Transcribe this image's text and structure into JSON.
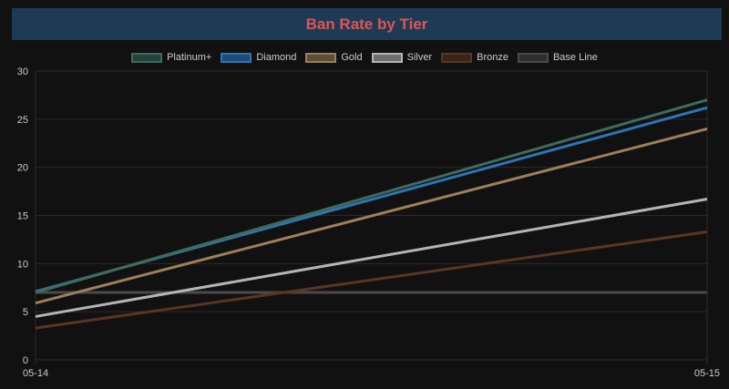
{
  "chart_data": {
    "type": "line",
    "title": "Ban Rate by Tier",
    "x": [
      "05-14",
      "05-15"
    ],
    "ylim": [
      0,
      30
    ],
    "yticks": [
      0,
      5,
      10,
      15,
      20,
      25,
      30
    ],
    "grid": true,
    "legend_position": "top",
    "series": [
      {
        "name": "Platinum+",
        "values": [
          7.0,
          27.0
        ],
        "color": "#3e6b5c",
        "fill": "#24433a"
      },
      {
        "name": "Diamond",
        "values": [
          7.1,
          26.2
        ],
        "color": "#2d74b5",
        "fill": "#1e4c78"
      },
      {
        "name": "Gold",
        "values": [
          5.9,
          24.0
        ],
        "color": "#9c8059",
        "fill": "#5e4d36"
      },
      {
        "name": "Silver",
        "values": [
          4.5,
          16.7
        ],
        "color": "#b5b5b5",
        "fill": "#6e6e6e"
      },
      {
        "name": "Bronze",
        "values": [
          3.3,
          13.3
        ],
        "color": "#5a3520",
        "fill": "#3a2416"
      },
      {
        "name": "Base Line",
        "values": [
          7.0,
          7.0
        ],
        "color": "#4a4a4a",
        "fill": "#2e2e2e"
      }
    ]
  }
}
